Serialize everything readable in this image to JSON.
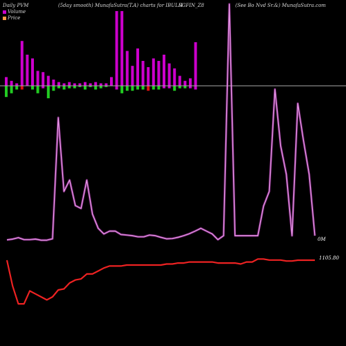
{
  "header": {
    "left": "Daily PVM",
    "mid1": "(5day smooth) MunafaSutra(T.A) charts for IBULH",
    "mid2": "SGFIN_Z8",
    "right": "(See Bo   Nvd Sr.&) MunafaSutra.com"
  },
  "legend": {
    "volume": "Volume",
    "price": "Price"
  },
  "colors": {
    "background": "#000000",
    "pvm_line": "#cc44cc",
    "price_line": "#ee2222",
    "bar_up": "#cc00cc",
    "bar_down": "#22cc22",
    "bar_red": "#dd1111",
    "baseline": "#aaaaaa"
  },
  "chart_data": {
    "type": "line",
    "title": "Daily PVM (5day smooth) MunafaSutra(T.A) charts for IBULHSGFIN_Z8",
    "x": [
      1,
      2,
      3,
      4,
      5,
      6,
      7,
      8,
      9,
      10,
      11,
      12,
      13,
      14,
      15,
      16,
      17,
      18,
      19,
      20,
      21,
      22,
      23,
      24,
      25,
      26,
      27,
      28,
      29,
      30,
      31,
      32,
      33,
      34,
      35,
      36,
      37,
      38,
      39,
      40,
      41,
      42,
      43,
      44,
      45,
      46,
      47,
      48,
      49,
      50,
      51,
      52,
      53,
      54,
      55
    ],
    "series": [
      {
        "name": "PVM",
        "values": [
          0.69,
          0.72,
          0.77,
          0.7,
          0.7,
          0.72,
          0.68,
          0.68,
          0.73,
          5.0,
          2.4,
          2.8,
          1.9,
          1.8,
          2.8,
          1.6,
          1.1,
          0.9,
          1.0,
          1.0,
          0.88,
          0.86,
          0.84,
          0.8,
          0.8,
          0.86,
          0.84,
          0.78,
          0.73,
          0.74,
          0.78,
          0.84,
          0.91,
          1.0,
          1.1,
          1.0,
          0.9,
          0.7,
          0.84,
          9.0,
          0.84,
          0.84,
          0.84,
          0.84,
          0.84,
          1.88,
          2.4,
          6.0,
          4.0,
          3.0,
          0.84,
          5.5,
          4.2,
          3.0,
          0.84
        ]
      },
      {
        "name": "Price",
        "values": [
          1105.8,
          1080.0,
          1062.0,
          1062.0,
          1075.0,
          1072.0,
          1069.0,
          1066.0,
          1069.0,
          1076.0,
          1077.0,
          1083.0,
          1086.0,
          1087.0,
          1092.0,
          1092.0,
          1095.0,
          1098.0,
          1100.0,
          1100.0,
          1100.0,
          1101.0,
          1101.0,
          1101.0,
          1101.0,
          1101.0,
          1101.0,
          1101.0,
          1102.0,
          1102.0,
          1103.0,
          1103.0,
          1104.0,
          1104.0,
          1104.0,
          1104.0,
          1104.0,
          1103.0,
          1103.0,
          1103.0,
          1103.0,
          1102.0,
          1104.0,
          1104.0,
          1107.0,
          1107.0,
          1106.0,
          1106.0,
          1106.0,
          1105.0,
          1105.0,
          1105.8,
          1105.8,
          1105.8,
          1105.8
        ]
      }
    ],
    "volume_bars": [
      {
        "x": 1,
        "up": 0.7,
        "down": -0.9,
        "dir": "down"
      },
      {
        "x": 2,
        "up": 0.4,
        "down": -0.6,
        "dir": "down"
      },
      {
        "x": 3,
        "up": 0.2,
        "down": -0.3,
        "dir": "down"
      },
      {
        "x": 4,
        "up": 3.6,
        "down": -0.3,
        "dir": "red"
      },
      {
        "x": 5,
        "up": 2.5,
        "down": 0,
        "dir": "up"
      },
      {
        "x": 6,
        "up": 2.2,
        "down": -0.3,
        "dir": "down"
      },
      {
        "x": 7,
        "up": 1.2,
        "down": -0.6,
        "dir": "down"
      },
      {
        "x": 8,
        "up": 1.1,
        "down": -0.2,
        "dir": "up"
      },
      {
        "x": 9,
        "up": 0.8,
        "down": -1.0,
        "dir": "down"
      },
      {
        "x": 10,
        "up": 0.5,
        "down": -0.4,
        "dir": "down"
      },
      {
        "x": 11,
        "up": 0.3,
        "down": -0.2,
        "dir": "down"
      },
      {
        "x": 12,
        "up": 0.2,
        "down": -0.3,
        "dir": "down"
      },
      {
        "x": 13,
        "up": 0.3,
        "down": -0.2,
        "dir": "down"
      },
      {
        "x": 14,
        "up": 0.2,
        "down": -0.2,
        "dir": "down"
      },
      {
        "x": 15,
        "up": 0.2,
        "down": -0.1,
        "dir": "down"
      },
      {
        "x": 16,
        "up": 0.3,
        "down": -0.3,
        "dir": "down"
      },
      {
        "x": 17,
        "up": 0.2,
        "down": -0.1,
        "dir": "down"
      },
      {
        "x": 18,
        "up": 0.3,
        "down": -0.3,
        "dir": "down"
      },
      {
        "x": 19,
        "up": 0.2,
        "down": -0.2,
        "dir": "down"
      },
      {
        "x": 20,
        "up": 0.2,
        "down": -0.1,
        "dir": "down"
      },
      {
        "x": 21,
        "up": 0.7,
        "down": 0,
        "dir": "up"
      },
      {
        "x": 22,
        "up": 6.0,
        "down": -0.3,
        "dir": "up"
      },
      {
        "x": 23,
        "up": 6.0,
        "down": -0.6,
        "dir": "down"
      },
      {
        "x": 24,
        "up": 2.8,
        "down": -0.4,
        "dir": "down"
      },
      {
        "x": 25,
        "up": 1.6,
        "down": -0.4,
        "dir": "down"
      },
      {
        "x": 26,
        "up": 3.0,
        "down": -0.3,
        "dir": "down"
      },
      {
        "x": 27,
        "up": 2.0,
        "down": -0.3,
        "dir": "down"
      },
      {
        "x": 28,
        "up": 1.5,
        "down": -0.4,
        "dir": "red"
      },
      {
        "x": 29,
        "up": 2.2,
        "down": -0.3,
        "dir": "down"
      },
      {
        "x": 30,
        "up": 2.0,
        "down": -0.3,
        "dir": "down"
      },
      {
        "x": 31,
        "up": 2.5,
        "down": -0.2,
        "dir": "up"
      },
      {
        "x": 32,
        "up": 1.8,
        "down": -0.2,
        "dir": "up"
      },
      {
        "x": 33,
        "up": 1.4,
        "down": -0.4,
        "dir": "down"
      },
      {
        "x": 34,
        "up": 0.8,
        "down": -0.2,
        "dir": "down"
      },
      {
        "x": 35,
        "up": 0.4,
        "down": -0.2,
        "dir": "down"
      },
      {
        "x": 36,
        "up": 0.6,
        "down": -0.2,
        "dir": "up"
      },
      {
        "x": 37,
        "up": 3.5,
        "down": -0.3,
        "dir": "up"
      }
    ],
    "volume_label": "0M",
    "price_label": "1105.80",
    "xlabel": "",
    "ylabel": ""
  }
}
